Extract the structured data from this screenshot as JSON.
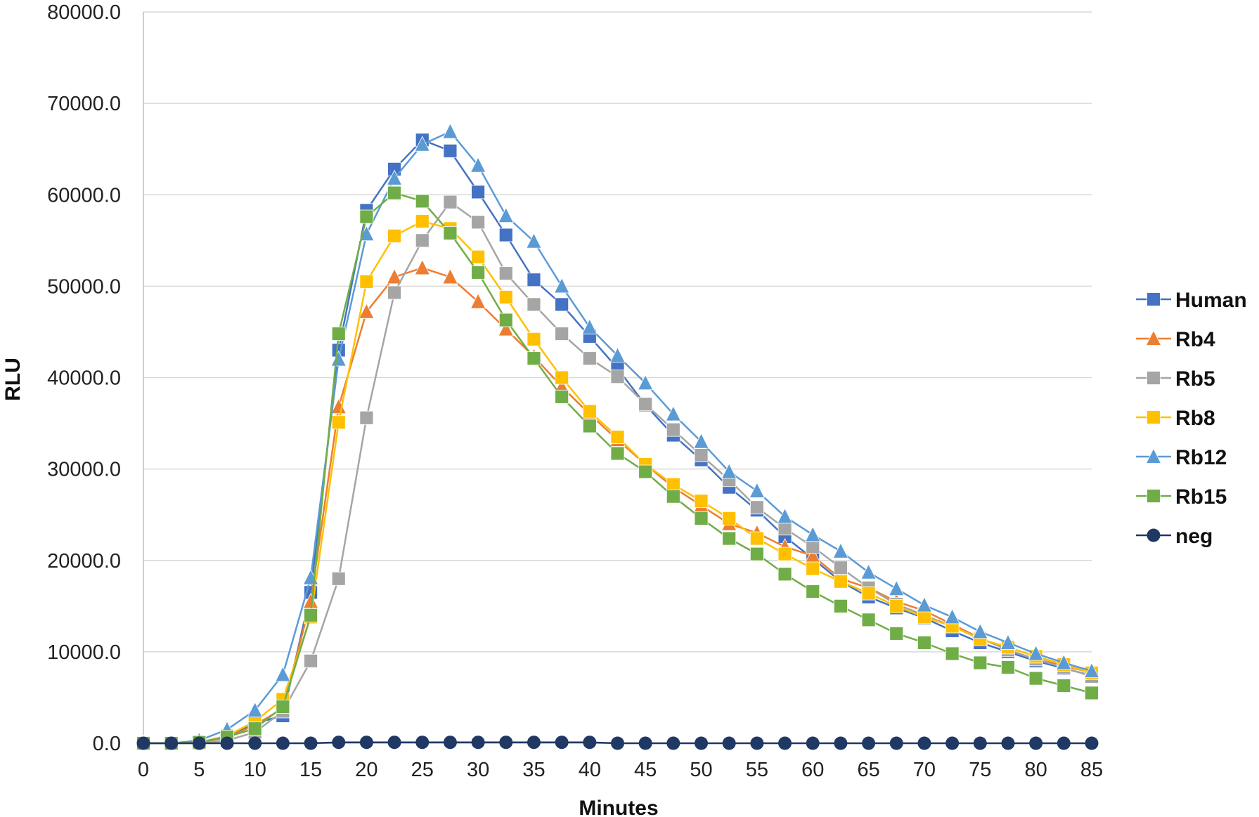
{
  "chart_data": {
    "type": "line",
    "title": "",
    "xlabel": "Minutes",
    "ylabel": "RLU",
    "xlim": [
      0,
      85
    ],
    "ylim": [
      0,
      80000
    ],
    "x_ticks": [
      "0",
      "5",
      "10",
      "15",
      "20",
      "25",
      "30",
      "35",
      "40",
      "45",
      "50",
      "55",
      "60",
      "65",
      "70",
      "75",
      "80",
      "85"
    ],
    "y_ticks": [
      "0.0",
      "10000.0",
      "20000.0",
      "30000.0",
      "40000.0",
      "50000.0",
      "60000.0",
      "70000.0",
      "80000.0"
    ],
    "grid": "horizontal",
    "legend_position": "right",
    "x": [
      0,
      2.5,
      5,
      7.5,
      10,
      12.5,
      15,
      17.5,
      20,
      22.5,
      25,
      27.5,
      30,
      32.5,
      35,
      37.5,
      40,
      42.5,
      45,
      47.5,
      50,
      52.5,
      55,
      57.5,
      60,
      62.5,
      65,
      67.5,
      70,
      72.5,
      75,
      77.5,
      80,
      82.5,
      85
    ],
    "series": [
      {
        "name": "Human",
        "color": "#4472C4",
        "marker": "square",
        "values": [
          0,
          0,
          100,
          800,
          2200,
          3000,
          16500,
          43000,
          58300,
          62800,
          66000,
          64800,
          60300,
          55600,
          50700,
          48000,
          44500,
          41000,
          37000,
          33700,
          31000,
          28000,
          25500,
          22600,
          20200,
          17700,
          16000,
          14800,
          13700,
          12300,
          11000,
          10000,
          9000,
          8200,
          7400
        ]
      },
      {
        "name": "Rb4",
        "color": "#ED7D31",
        "marker": "triangle",
        "values": [
          0,
          0,
          100,
          600,
          2000,
          3800,
          15500,
          36800,
          47200,
          51000,
          52000,
          51000,
          48300,
          45300,
          42300,
          39000,
          36000,
          33200,
          30500,
          28000,
          26000,
          24000,
          23000,
          21500,
          20500,
          18000,
          17000,
          15500,
          14500,
          13000,
          11500,
          10200,
          9200,
          8500,
          7700
        ]
      },
      {
        "name": "Rb5",
        "color": "#A5A5A5",
        "marker": "square",
        "values": [
          0,
          0,
          0,
          300,
          1200,
          3500,
          9000,
          18000,
          35600,
          49300,
          55000,
          59200,
          57000,
          51400,
          48000,
          44800,
          42100,
          40100,
          37100,
          34300,
          31500,
          28800,
          25800,
          23500,
          21500,
          19200,
          17000,
          15200,
          14000,
          12800,
          11500,
          10200,
          9200,
          8300,
          7300
        ]
      },
      {
        "name": "Rb8",
        "color": "#FFC000",
        "marker": "square",
        "values": [
          0,
          0,
          100,
          800,
          2400,
          4800,
          13800,
          35100,
          50500,
          55500,
          57100,
          56300,
          53200,
          48800,
          44200,
          40000,
          36300,
          33500,
          30500,
          28300,
          26500,
          24600,
          22400,
          20700,
          19100,
          17700,
          16400,
          15000,
          13800,
          12800,
          11400,
          10500,
          9500,
          8600,
          7700
        ]
      },
      {
        "name": "Rb12",
        "color": "#5B9BD5",
        "marker": "triangle",
        "values": [
          0,
          0,
          300,
          1500,
          3600,
          7500,
          18100,
          42000,
          55700,
          61800,
          65500,
          66900,
          63200,
          57700,
          54900,
          50000,
          45500,
          42400,
          39400,
          36000,
          33000,
          29700,
          27600,
          24800,
          22800,
          21000,
          18700,
          16900,
          15100,
          13800,
          12200,
          11000,
          9800,
          8800,
          7900
        ]
      },
      {
        "name": "Rb15",
        "color": "#70AD47",
        "marker": "square",
        "values": [
          0,
          0,
          100,
          700,
          1600,
          4000,
          14000,
          44800,
          57600,
          60200,
          59300,
          55800,
          51500,
          46300,
          42100,
          37900,
          34700,
          31700,
          29700,
          27000,
          24600,
          22400,
          20700,
          18500,
          16600,
          15000,
          13500,
          12000,
          11000,
          9800,
          8800,
          8300,
          7100,
          6300,
          5500
        ]
      },
      {
        "name": "neg",
        "color": "#203864",
        "marker": "circle",
        "values": [
          0,
          0,
          0,
          0,
          0,
          0,
          0,
          100,
          100,
          100,
          100,
          100,
          100,
          100,
          100,
          100,
          100,
          0,
          0,
          0,
          0,
          0,
          0,
          0,
          0,
          0,
          0,
          0,
          0,
          0,
          0,
          0,
          0,
          0,
          0
        ]
      }
    ]
  }
}
